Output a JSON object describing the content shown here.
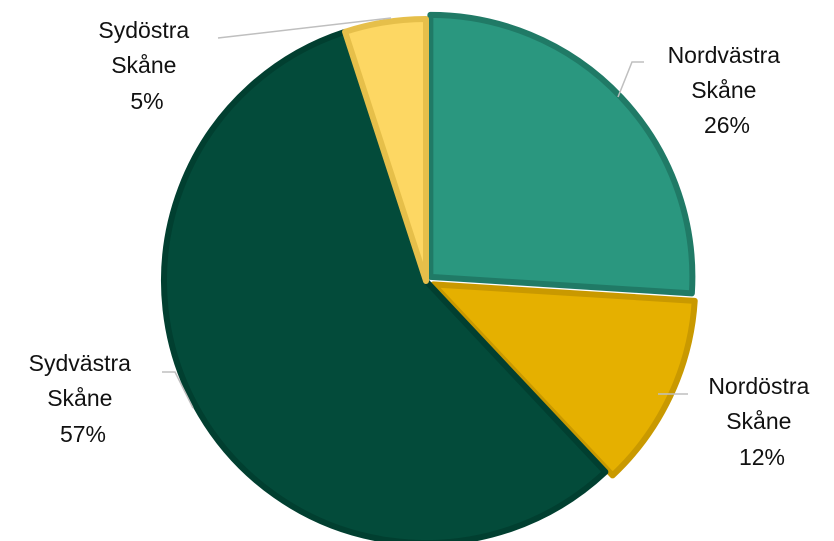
{
  "chart_data": {
    "type": "pie",
    "title": "",
    "slices": [
      {
        "name": "Nordvästra Skåne",
        "line1": "Nordvästra",
        "line2": "Skåne",
        "pct_label": "26%",
        "value": 26,
        "color": "#2a977f",
        "border": "#207a66"
      },
      {
        "name": "Nordöstra Skåne",
        "line1": "Nordöstra",
        "line2": "Skåne",
        "pct_label": "12%",
        "value": 12,
        "color": "#e5b000",
        "border": "#c99900"
      },
      {
        "name": "Sydvästra Skåne",
        "line1": "Sydvästra",
        "line2": "Skåne",
        "pct_label": "57%",
        "value": 57,
        "color": "#034b3a",
        "border": "#013f30"
      },
      {
        "name": "Sydöstra Skåne",
        "line1": "Sydöstra",
        "line2": "Skåne",
        "pct_label": "5%",
        "value": 5,
        "color": "#fdd763",
        "border": "#e6bf4a"
      }
    ]
  }
}
